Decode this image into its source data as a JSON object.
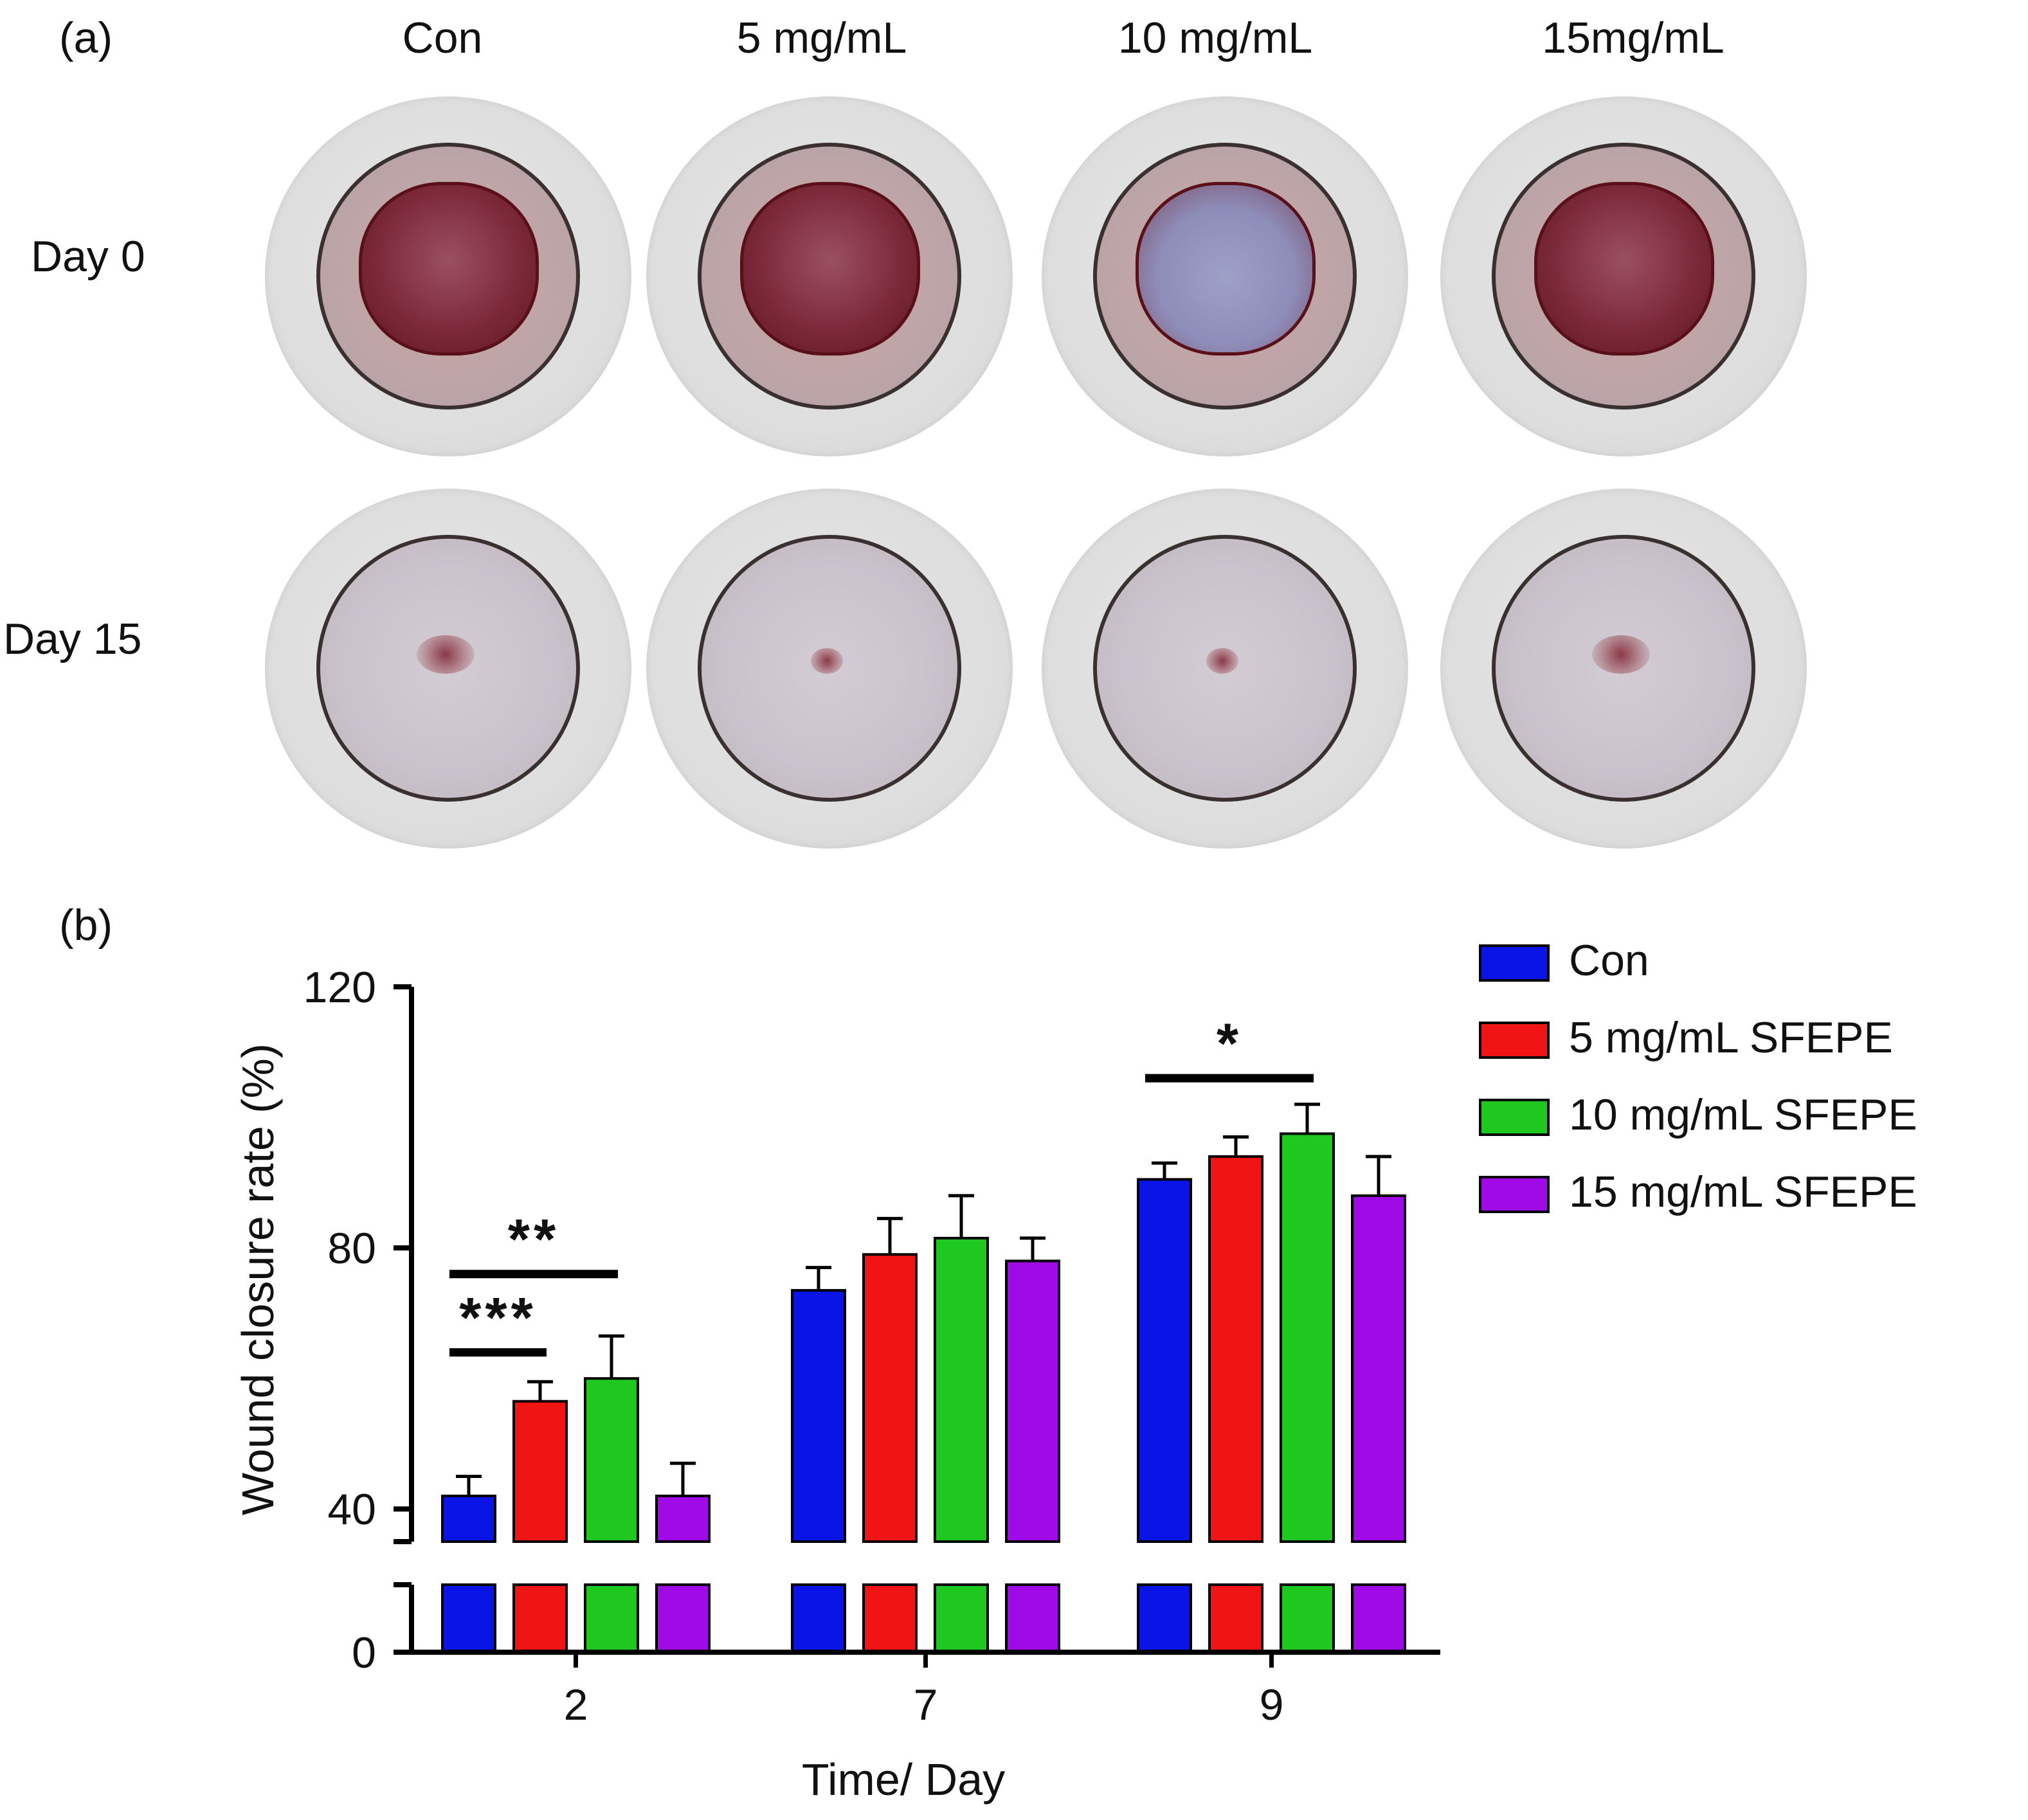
{
  "panel_a": {
    "label": "(a)",
    "columns": [
      "Con",
      "5 mg/mL",
      "10 mg/mL",
      "15mg/mL"
    ],
    "rows": [
      "Day 0",
      "Day 15"
    ]
  },
  "panel_b": {
    "label": "(b)",
    "legend": [
      {
        "name": "Con",
        "color": "#0a14e6"
      },
      {
        "name": "5 mg/mL SFEPE",
        "color": "#f01414"
      },
      {
        "name": "10 mg/mL SFEPE",
        "color": "#1ec81e"
      },
      {
        "name": "15 mg/mL SFEPE",
        "color": "#a00ae6"
      }
    ]
  },
  "chart_data": {
    "type": "bar",
    "xlabel": "Time/ Day",
    "ylabel": "Wound closure rate (%)",
    "categories": [
      "2",
      "7",
      "9"
    ],
    "yticks": [
      "0",
      "40",
      "80",
      "120"
    ],
    "ylim": [
      0,
      120
    ],
    "axis_break": [
      15,
      35
    ],
    "series": [
      {
        "name": "Con",
        "color": "#0a14e6",
        "values": [
          42,
          73.5,
          90.5
        ],
        "errors": [
          3,
          3.5,
          2.5
        ]
      },
      {
        "name": "5 mg/mL SFEPE",
        "color": "#f01414",
        "values": [
          56.5,
          79,
          94
        ],
        "errors": [
          3,
          5.5,
          3
        ]
      },
      {
        "name": "10 mg/mL SFEPE",
        "color": "#1ec81e",
        "values": [
          60,
          81.5,
          97.5
        ],
        "errors": [
          6.5,
          6.5,
          4.5
        ]
      },
      {
        "name": "15 mg/mL SFEPE",
        "color": "#a00ae6",
        "values": [
          42,
          78,
          88
        ],
        "errors": [
          5,
          3.5,
          6
        ]
      }
    ],
    "significance": [
      {
        "label": "***",
        "category": "2",
        "from_series": 0,
        "to_series": 1,
        "y": 64
      },
      {
        "label": "**",
        "category": "2",
        "from_series": 0,
        "to_series": 2,
        "y": 76
      },
      {
        "label": "*",
        "category": "9",
        "from_series": 0,
        "to_series": 2,
        "y": 106
      }
    ]
  }
}
